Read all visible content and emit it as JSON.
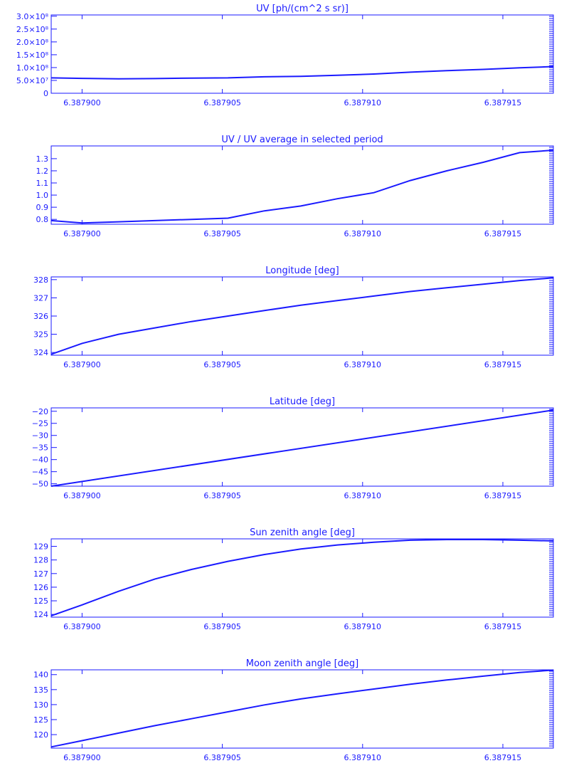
{
  "style": {
    "color": "#1a1aff",
    "background": "#ffffff"
  },
  "chart_data": [
    {
      "type": "line",
      "title": "UV [ph/(cm^2 s sr)]",
      "x": [
        6.3878989,
        6.3879,
        6.3879013,
        6.3879026,
        6.3879039,
        6.3879052,
        6.3879065,
        6.3879078,
        6.3879091,
        6.3879104,
        6.3879117,
        6.387913,
        6.3879143,
        6.3879156,
        6.3879168
      ],
      "values": [
        60000000.0,
        58000000.0,
        56000000.0,
        57000000.0,
        59000000.0,
        60000000.0,
        64000000.0,
        66000000.0,
        70000000.0,
        75000000.0,
        82000000.0,
        88000000.0,
        93000000.0,
        99000000.0,
        104000000.0
      ],
      "xlim": [
        6.3878989,
        6.3879168
      ],
      "ylim": [
        0,
        305000000.0
      ],
      "x_ticks": [
        "6.387900",
        "6.387905",
        "6.387910",
        "6.387915"
      ],
      "y_ticks": [
        "0",
        "5.0×10⁷",
        "1.0×10⁸",
        "1.5×10⁸",
        "2.0×10⁸",
        "2.5×10⁸",
        "3.0×10⁸"
      ],
      "y_tick_values": [
        0,
        50000000.0,
        100000000.0,
        150000000.0,
        200000000.0,
        250000000.0,
        300000000.0
      ]
    },
    {
      "type": "line",
      "title": "UV / UV average in selected period",
      "x": [
        6.3878989,
        6.3879,
        6.3879013,
        6.3879026,
        6.3879039,
        6.3879052,
        6.3879065,
        6.3879078,
        6.3879091,
        6.3879104,
        6.3879117,
        6.387913,
        6.3879143,
        6.3879156,
        6.3879168
      ],
      "values": [
        0.79,
        0.77,
        0.78,
        0.79,
        0.8,
        0.81,
        0.87,
        0.91,
        0.97,
        1.02,
        1.12,
        1.2,
        1.27,
        1.35,
        1.37
      ],
      "xlim": [
        6.3878989,
        6.3879168
      ],
      "ylim": [
        0.76,
        1.405
      ],
      "x_ticks": [
        "6.387900",
        "6.387905",
        "6.387910",
        "6.387915"
      ],
      "y_ticks": [
        "0.8",
        "0.9",
        "1.0",
        "1.1",
        "1.2",
        "1.3"
      ],
      "y_tick_values": [
        0.8,
        0.9,
        1.0,
        1.1,
        1.2,
        1.3
      ]
    },
    {
      "type": "line",
      "title": "Longitude [deg]",
      "x": [
        6.3878989,
        6.3879,
        6.3879013,
        6.3879026,
        6.3879039,
        6.3879052,
        6.3879065,
        6.3879078,
        6.3879091,
        6.3879104,
        6.3879117,
        6.387913,
        6.3879143,
        6.3879156,
        6.3879168
      ],
      "values": [
        323.9,
        324.5,
        325.0,
        325.35,
        325.7,
        326.0,
        326.3,
        326.6,
        326.85,
        327.1,
        327.35,
        327.55,
        327.75,
        327.95,
        328.1
      ],
      "xlim": [
        6.3878989,
        6.3879168
      ],
      "ylim": [
        323.85,
        328.15
      ],
      "x_ticks": [
        "6.387900",
        "6.387905",
        "6.387910",
        "6.387915"
      ],
      "y_ticks": [
        "324",
        "325",
        "326",
        "327",
        "328"
      ],
      "y_tick_values": [
        324,
        325,
        326,
        327,
        328
      ]
    },
    {
      "type": "line",
      "title": "Latitude [deg]",
      "x": [
        6.3878989,
        6.3879168
      ],
      "values": [
        -51.0,
        -19.5
      ],
      "xlim": [
        6.3878989,
        6.3879168
      ],
      "ylim": [
        -51.0,
        -18.6
      ],
      "x_ticks": [
        "6.387900",
        "6.387905",
        "6.387910",
        "6.387915"
      ],
      "y_ticks": [
        "−50",
        "−45",
        "−40",
        "−35",
        "−30",
        "−25",
        "−20"
      ],
      "y_tick_values": [
        -50,
        -45,
        -40,
        -35,
        -30,
        -25,
        -20
      ]
    },
    {
      "type": "line",
      "title": "Sun zenith angle [deg]",
      "x": [
        6.3878989,
        6.3879,
        6.3879013,
        6.3879026,
        6.3879039,
        6.3879052,
        6.3879065,
        6.3879078,
        6.3879091,
        6.3879104,
        6.3879117,
        6.387913,
        6.3879143,
        6.3879156,
        6.3879168
      ],
      "values": [
        123.9,
        124.7,
        125.7,
        126.6,
        127.3,
        127.9,
        128.4,
        128.8,
        129.1,
        129.3,
        129.45,
        129.5,
        129.5,
        129.45,
        129.4
      ],
      "xlim": [
        6.3878989,
        6.3879168
      ],
      "ylim": [
        123.8,
        129.55
      ],
      "x_ticks": [
        "6.387900",
        "6.387905",
        "6.387910",
        "6.387915"
      ],
      "y_ticks": [
        "124",
        "125",
        "126",
        "127",
        "128",
        "129"
      ],
      "y_tick_values": [
        124,
        125,
        126,
        127,
        128,
        129
      ]
    },
    {
      "type": "line",
      "title": "Moon zenith angle [deg]",
      "x": [
        6.3878989,
        6.3879,
        6.3879013,
        6.3879026,
        6.3879039,
        6.3879052,
        6.3879065,
        6.3879078,
        6.3879091,
        6.3879104,
        6.3879117,
        6.387913,
        6.3879143,
        6.3879156,
        6.3879168
      ],
      "values": [
        115.9,
        118.0,
        120.5,
        123.0,
        125.3,
        127.6,
        129.9,
        131.9,
        133.6,
        135.2,
        136.8,
        138.2,
        139.5,
        140.7,
        141.5
      ],
      "xlim": [
        6.3878989,
        6.3879168
      ],
      "ylim": [
        115.5,
        141.6
      ],
      "x_ticks": [
        "6.387900",
        "6.387905",
        "6.387910",
        "6.387915"
      ],
      "y_ticks": [
        "120",
        "125",
        "130",
        "135",
        "140"
      ],
      "y_tick_values": [
        120,
        125,
        130,
        135,
        140
      ]
    }
  ]
}
